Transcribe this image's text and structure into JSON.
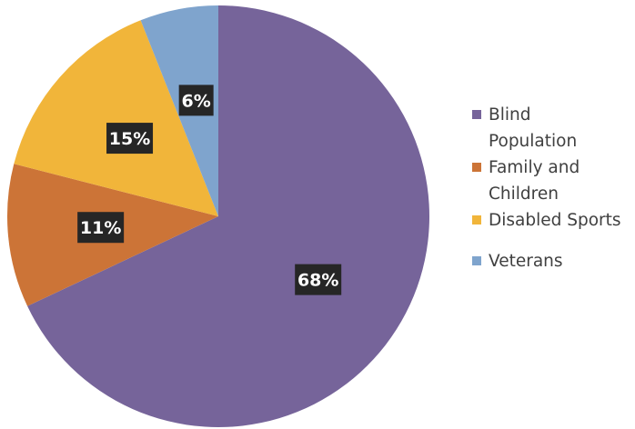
{
  "chart_data": {
    "type": "pie",
    "categories": [
      "Blind Population",
      "Family and Children",
      "Disabled Sports",
      "Veterans"
    ],
    "values": [
      68,
      11,
      15,
      6
    ],
    "value_labels": [
      "68%",
      "11%",
      "15%",
      "6%"
    ],
    "colors": [
      "#76649a",
      "#cc7437",
      "#f1b53a",
      "#7fa4cd"
    ],
    "start_angle_deg": 0,
    "direction": "clockwise",
    "legend_position": "right",
    "title": ""
  },
  "legend": {
    "items": [
      {
        "label": "Blind\nPopulation",
        "color": "#76649a"
      },
      {
        "label": "Family and\nChildren",
        "color": "#cc7437"
      },
      {
        "label": "Disabled Sports",
        "color": "#f1b53a"
      },
      {
        "label": "Veterans",
        "color": "#7fa4cd"
      }
    ]
  }
}
